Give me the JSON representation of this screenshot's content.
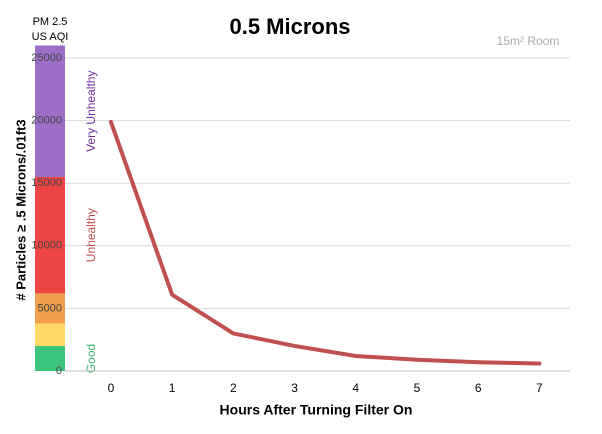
{
  "chart_data": {
    "type": "line",
    "title": "0.5 Microns",
    "subtitle": "15m² Room",
    "band_header": [
      "PM 2.5",
      "US AQI"
    ],
    "xlabel": "Hours After Turning Filter On",
    "ylabel": "# Particles ≥ .5 Microns/.01ft3",
    "x": [
      0,
      1,
      2,
      3,
      4,
      5,
      6,
      7
    ],
    "series": [
      {
        "name": "0.5 Microns",
        "color": "#c0504d",
        "values": [
          19900,
          6100,
          3000,
          2000,
          1200,
          900,
          700,
          600
        ]
      }
    ],
    "xlim": [
      -0.75,
      7.5
    ],
    "xticks": [
      0,
      1,
      2,
      3,
      4,
      5,
      6,
      7
    ],
    "ylim": [
      0,
      26000
    ],
    "yticks": [
      0,
      5000,
      10000,
      15000,
      20000,
      25000
    ],
    "grid": true,
    "aqi_bands": [
      {
        "name": "Good",
        "color": "#3cc47c",
        "label_color": "#3cb371",
        "from": 0,
        "to": 2000
      },
      {
        "name": null,
        "color": "#ffd966",
        "label_color": null,
        "from": 2000,
        "to": 3800
      },
      {
        "name": null,
        "color": "#f0a04b",
        "label_color": null,
        "from": 3800,
        "to": 6200
      },
      {
        "name": "Unhealthy",
        "color": "#ef4444",
        "label_color": "#c0504d",
        "from": 6200,
        "to": 15500
      },
      {
        "name": "Very Unhealthy",
        "color": "#9b6fc7",
        "label_color": "#7030a0",
        "from": 15500,
        "to": 26000
      }
    ]
  }
}
